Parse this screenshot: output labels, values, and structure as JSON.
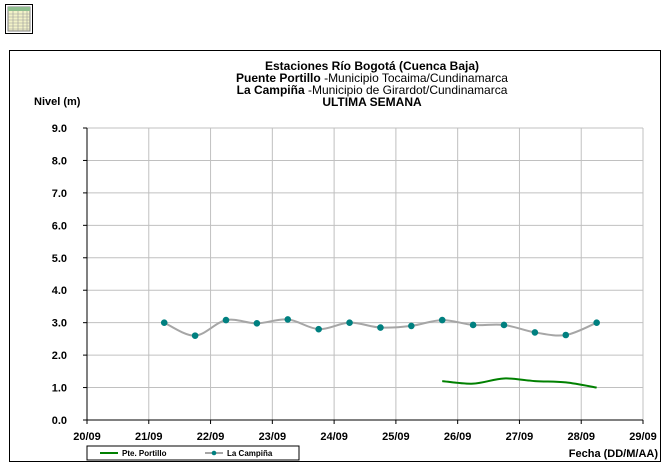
{
  "chart_data": {
    "type": "line",
    "title_lines": [
      {
        "bold": "Estaciones Río Bogotá (Cuenca Baja)",
        "normal": ""
      },
      {
        "bold": "Puente Portillo",
        "normal": " -Municipio Tocaima/Cundinamarca"
      },
      {
        "bold": "La Campiña",
        "normal": " -Municipio de Girardot/Cundinamarca"
      },
      {
        "bold": "ULTIMA SEMANA",
        "normal": ""
      }
    ],
    "ylabel": "Nivel (m)",
    "xlabel": "Fecha (DD/M/AA)",
    "ylim": [
      0,
      9
    ],
    "yticks": [
      "0.0",
      "1.0",
      "2.0",
      "3.0",
      "4.0",
      "5.0",
      "6.0",
      "7.0",
      "8.0",
      "9.0"
    ],
    "xlim": [
      "20/09",
      "29/09"
    ],
    "xticks": [
      "20/09",
      "21/09",
      "22/09",
      "23/09",
      "24/09",
      "25/09",
      "26/09",
      "27/09",
      "28/09",
      "29/09"
    ],
    "grid": true,
    "legend_position": "bottom-left",
    "series": [
      {
        "name": "Pte. Portillo",
        "color": "#008000",
        "marker": "none",
        "points": [
          {
            "x": "25/09 18:00",
            "y": 1.2
          },
          {
            "x": "26/09 06:00",
            "y": 1.12
          },
          {
            "x": "26/09 18:00",
            "y": 1.28
          },
          {
            "x": "27/09 06:00",
            "y": 1.2
          },
          {
            "x": "27/09 18:00",
            "y": 1.16
          },
          {
            "x": "28/09 06:00",
            "y": 1.0
          }
        ]
      },
      {
        "name": "La Campiña",
        "color": "#a6a6a6",
        "marker_color": "#008080",
        "marker": "circle",
        "points": [
          {
            "x": "21/09 06:00",
            "y": 3.0
          },
          {
            "x": "21/09 18:00",
            "y": 2.6
          },
          {
            "x": "22/09 06:00",
            "y": 3.08
          },
          {
            "x": "22/09 18:00",
            "y": 2.98
          },
          {
            "x": "23/09 06:00",
            "y": 3.1
          },
          {
            "x": "23/09 18:00",
            "y": 2.8
          },
          {
            "x": "24/09 06:00",
            "y": 3.0
          },
          {
            "x": "24/09 18:00",
            "y": 2.85
          },
          {
            "x": "25/09 06:00",
            "y": 2.9
          },
          {
            "x": "25/09 18:00",
            "y": 3.08
          },
          {
            "x": "26/09 06:00",
            "y": 2.93
          },
          {
            "x": "26/09 18:00",
            "y": 2.93
          },
          {
            "x": "27/09 06:00",
            "y": 2.7
          },
          {
            "x": "27/09 18:00",
            "y": 2.62
          },
          {
            "x": "28/09 06:00",
            "y": 3.0
          }
        ]
      }
    ]
  }
}
